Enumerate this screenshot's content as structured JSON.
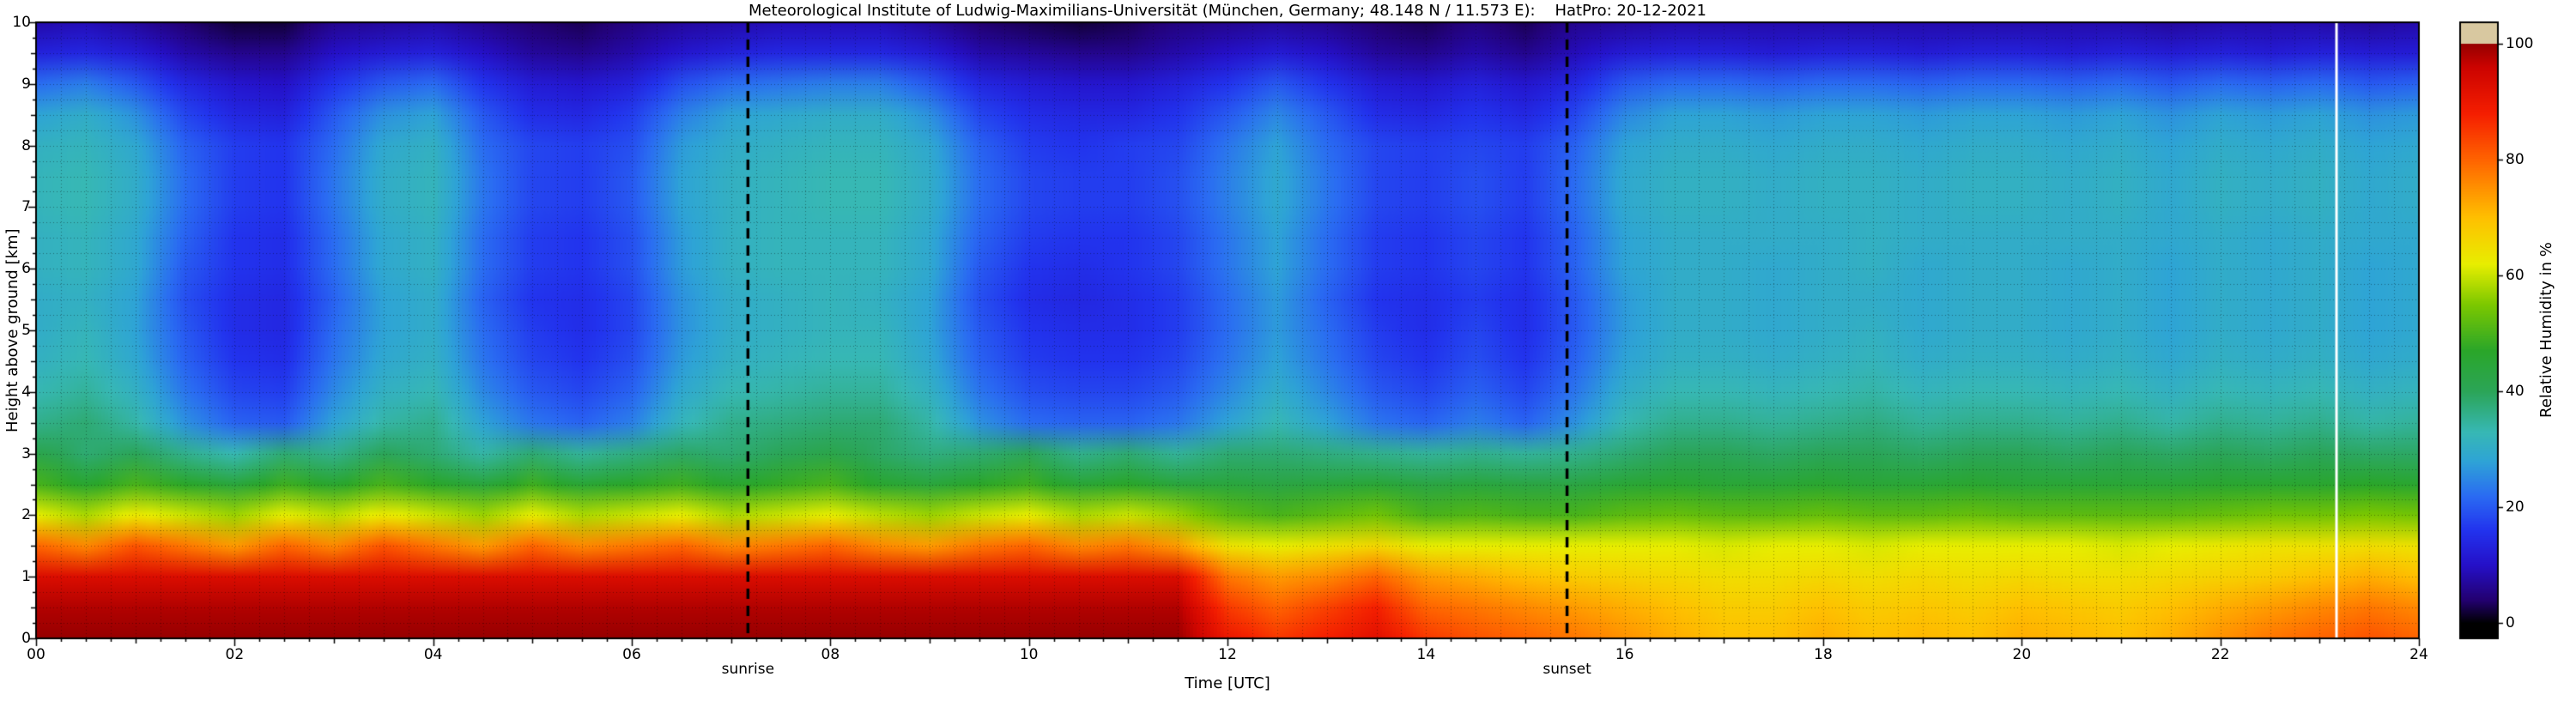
{
  "title": {
    "text": "Meteorological Institute of Ludwig-Maximilians-Universität (München, Germany; 48.148 N / 11.573 E):    HatPro: 20-12-2021"
  },
  "axes": {
    "xlabel": "Time [UTC]",
    "ylabel": "Height above ground [km]",
    "x_tick_values": [
      0,
      2,
      4,
      6,
      8,
      10,
      12,
      14,
      16,
      18,
      20,
      22,
      24
    ],
    "x_tick_labels": [
      "00",
      "02",
      "04",
      "06",
      "08",
      "10",
      "12",
      "14",
      "16",
      "18",
      "20",
      "22",
      "24"
    ],
    "y_tick_values": [
      0,
      1,
      2,
      3,
      4,
      5,
      6,
      7,
      8,
      9,
      10
    ],
    "y_tick_labels": [
      "0",
      "1",
      "2",
      "3",
      "4",
      "5",
      "6",
      "7",
      "8",
      "9",
      "10"
    ]
  },
  "colorbar": {
    "label": "Relative Humidity in %",
    "tick_values": [
      0,
      20,
      40,
      60,
      80,
      100
    ],
    "tick_labels": [
      "0",
      "20",
      "40",
      "60",
      "80",
      "100"
    ],
    "over_color": "#d8c8a0",
    "under_color": "#000000"
  },
  "annotations": {
    "sunrise_label": "sunrise",
    "sunset_label": "sunset",
    "sunrise_time_utc": 7.17,
    "sunset_time_utc": 15.42,
    "white_line_time_utc": 23.17,
    "dashed_line_color": "#000000",
    "white_line_color": "#ffffff"
  },
  "chart_data": {
    "type": "heatmap",
    "title": "Meteorological Institute of Ludwig-Maximilians-Universität (München, Germany; 48.148 N / 11.573 E):    HatPro: 20-12-2021",
    "xlabel": "Time [UTC]",
    "ylabel": "Height above ground [km]",
    "zlabel": "Relative Humidity in %",
    "x_range": [
      0,
      24
    ],
    "y_range": [
      0,
      10
    ],
    "z_range": [
      0,
      100
    ],
    "grid": true,
    "x": [
      0,
      0.5,
      1,
      1.5,
      2,
      2.5,
      3,
      3.5,
      4,
      4.5,
      5,
      5.5,
      6,
      6.5,
      7,
      7.5,
      8,
      8.5,
      9,
      9.5,
      10,
      10.5,
      11,
      11.5,
      12,
      12.5,
      13,
      13.5,
      14,
      14.5,
      15,
      15.5,
      16,
      16.5,
      17,
      17.5,
      18,
      18.5,
      19,
      19.5,
      20,
      20.5,
      21,
      21.5,
      22,
      22.5,
      23,
      23.5,
      24
    ],
    "y": [
      0,
      0.5,
      1,
      1.5,
      2,
      2.5,
      3,
      3.5,
      4,
      4.5,
      5,
      5.5,
      6,
      6.5,
      7,
      7.5,
      8,
      8.5,
      9,
      9.5,
      10
    ],
    "values": [
      [
        100,
        100,
        100,
        100,
        100,
        100,
        100,
        100,
        100,
        100,
        100,
        100,
        100,
        100,
        100,
        100,
        100,
        100,
        100,
        100,
        100,
        100,
        100,
        100,
        90,
        85,
        88,
        92,
        85,
        82,
        80,
        78,
        75,
        72,
        70,
        70,
        72,
        70,
        71,
        70,
        72,
        71,
        70,
        72,
        75,
        78,
        80,
        82,
        80
      ],
      [
        98,
        98,
        98,
        98,
        98,
        98,
        98,
        98,
        98,
        98,
        98,
        98,
        98,
        98,
        98,
        98,
        98,
        98,
        98,
        98,
        98,
        98,
        98,
        98,
        85,
        80,
        84,
        88,
        80,
        78,
        76,
        74,
        72,
        70,
        68,
        68,
        70,
        68,
        69,
        68,
        70,
        69,
        68,
        70,
        72,
        74,
        76,
        78,
        76
      ],
      [
        93,
        93,
        93,
        93,
        93,
        93,
        93,
        93,
        93,
        93,
        93,
        93,
        93,
        93,
        93,
        93,
        93,
        93,
        93,
        93,
        93,
        93,
        93,
        93,
        78,
        74,
        76,
        80,
        74,
        72,
        70,
        68,
        67,
        66,
        65,
        65,
        66,
        65,
        66,
        65,
        66,
        65,
        65,
        66,
        67,
        68,
        70,
        72,
        70
      ],
      [
        80,
        76,
        82,
        78,
        74,
        80,
        76,
        82,
        78,
        74,
        80,
        76,
        78,
        80,
        76,
        78,
        80,
        76,
        74,
        78,
        80,
        76,
        78,
        74,
        64,
        62,
        64,
        66,
        62,
        62,
        62,
        62,
        62,
        62,
        61,
        62,
        62,
        61,
        62,
        62,
        62,
        62,
        61,
        62,
        63,
        64,
        64,
        65,
        64
      ],
      [
        62,
        58,
        63,
        60,
        57,
        62,
        59,
        63,
        60,
        57,
        62,
        58,
        60,
        62,
        58,
        60,
        62,
        59,
        57,
        60,
        62,
        58,
        60,
        57,
        52,
        50,
        52,
        54,
        50,
        51,
        50,
        50,
        52,
        53,
        52,
        52,
        53,
        52,
        52,
        53,
        52,
        52,
        52,
        52,
        53,
        54,
        54,
        55,
        54
      ],
      [
        50,
        46,
        50,
        47,
        44,
        49,
        46,
        50,
        47,
        44,
        49,
        45,
        47,
        49,
        46,
        48,
        50,
        46,
        44,
        47,
        49,
        45,
        47,
        44,
        44,
        43,
        44,
        45,
        43,
        44,
        43,
        43,
        45,
        46,
        45,
        45,
        46,
        45,
        45,
        46,
        45,
        45,
        45,
        45,
        46,
        46,
        46,
        47,
        46
      ],
      [
        42,
        38,
        40,
        36,
        33,
        38,
        36,
        40,
        38,
        34,
        38,
        35,
        37,
        39,
        38,
        40,
        42,
        39,
        37,
        38,
        40,
        36,
        38,
        35,
        38,
        38,
        37,
        36,
        35,
        36,
        35,
        36,
        38,
        40,
        40,
        39,
        40,
        40,
        39,
        40,
        40,
        39,
        40,
        39,
        40,
        39,
        40,
        39,
        39
      ],
      [
        36,
        38,
        34,
        26,
        21,
        20,
        28,
        34,
        36,
        28,
        23,
        21,
        24,
        32,
        36,
        37,
        38,
        38,
        34,
        26,
        22,
        21,
        21,
        23,
        28,
        33,
        28,
        23,
        21,
        24,
        21,
        26,
        33,
        36,
        36,
        35,
        36,
        37,
        35,
        36,
        36,
        35,
        36,
        34,
        36,
        35,
        36,
        34,
        35
      ],
      [
        33,
        35,
        31,
        23,
        18,
        17,
        25,
        31,
        33,
        25,
        20,
        18,
        21,
        29,
        33,
        34,
        35,
        35,
        31,
        23,
        19,
        18,
        18,
        20,
        25,
        30,
        25,
        20,
        18,
        21,
        18,
        23,
        30,
        33,
        33,
        32,
        33,
        34,
        32,
        33,
        33,
        32,
        33,
        31,
        33,
        32,
        33,
        31,
        32
      ],
      [
        31,
        33,
        29,
        21,
        16,
        15,
        23,
        29,
        31,
        23,
        18,
        16,
        19,
        27,
        31,
        32,
        33,
        33,
        29,
        21,
        17,
        16,
        16,
        18,
        23,
        28,
        23,
        18,
        16,
        19,
        16,
        21,
        28,
        31,
        31,
        30,
        31,
        32,
        30,
        31,
        31,
        30,
        31,
        29,
        31,
        30,
        31,
        29,
        30
      ],
      [
        30,
        32,
        28,
        20,
        15,
        14,
        22,
        28,
        30,
        22,
        17,
        15,
        18,
        26,
        30,
        31,
        32,
        32,
        28,
        20,
        16,
        15,
        15,
        17,
        22,
        27,
        22,
        17,
        15,
        18,
        15,
        20,
        27,
        30,
        30,
        29,
        30,
        31,
        29,
        30,
        30,
        29,
        30,
        28,
        30,
        29,
        30,
        28,
        29
      ],
      [
        30,
        31,
        28,
        19,
        15,
        14,
        21,
        28,
        30,
        21,
        16,
        15,
        18,
        26,
        30,
        31,
        32,
        31,
        28,
        19,
        15,
        14,
        15,
        17,
        22,
        27,
        21,
        16,
        15,
        17,
        15,
        20,
        27,
        30,
        30,
        29,
        30,
        30,
        29,
        30,
        30,
        29,
        30,
        28,
        30,
        29,
        30,
        28,
        29
      ],
      [
        31,
        32,
        29,
        20,
        16,
        15,
        22,
        29,
        31,
        22,
        17,
        16,
        19,
        27,
        31,
        32,
        32,
        32,
        29,
        20,
        16,
        15,
        16,
        18,
        23,
        28,
        22,
        17,
        16,
        18,
        16,
        21,
        28,
        30,
        30,
        29,
        30,
        31,
        29,
        30,
        30,
        29,
        30,
        28,
        30,
        29,
        30,
        28,
        29
      ],
      [
        31,
        32,
        29,
        21,
        16,
        15,
        22,
        29,
        31,
        22,
        17,
        16,
        19,
        27,
        31,
        32,
        32,
        32,
        29,
        21,
        17,
        16,
        16,
        18,
        23,
        28,
        22,
        17,
        16,
        18,
        16,
        21,
        28,
        30,
        30,
        30,
        30,
        31,
        30,
        30,
        30,
        30,
        30,
        29,
        30,
        29,
        30,
        29,
        29
      ],
      [
        32,
        33,
        30,
        22,
        17,
        16,
        23,
        30,
        32,
        23,
        18,
        17,
        20,
        28,
        31,
        32,
        33,
        33,
        30,
        22,
        18,
        17,
        17,
        19,
        24,
        29,
        23,
        18,
        17,
        19,
        17,
        22,
        29,
        31,
        31,
        30,
        31,
        31,
        30,
        31,
        31,
        30,
        31,
        29,
        31,
        30,
        31,
        29,
        30
      ],
      [
        32,
        33,
        30,
        22,
        17,
        16,
        23,
        30,
        32,
        23,
        18,
        17,
        20,
        28,
        31,
        32,
        33,
        33,
        30,
        22,
        18,
        17,
        17,
        19,
        24,
        29,
        23,
        18,
        17,
        19,
        17,
        22,
        29,
        31,
        31,
        30,
        31,
        31,
        30,
        31,
        31,
        30,
        31,
        29,
        31,
        30,
        31,
        29,
        30
      ],
      [
        31,
        32,
        29,
        21,
        17,
        16,
        22,
        29,
        31,
        22,
        18,
        17,
        19,
        27,
        30,
        31,
        32,
        32,
        29,
        21,
        17,
        16,
        17,
        18,
        23,
        28,
        22,
        18,
        17,
        18,
        17,
        21,
        28,
        30,
        30,
        29,
        30,
        30,
        29,
        30,
        30,
        29,
        30,
        28,
        30,
        29,
        30,
        28,
        29
      ],
      [
        28,
        30,
        26,
        18,
        14,
        13,
        20,
        26,
        28,
        20,
        15,
        14,
        17,
        24,
        28,
        29,
        30,
        30,
        26,
        18,
        15,
        14,
        14,
        16,
        20,
        25,
        20,
        15,
        14,
        16,
        14,
        18,
        25,
        28,
        28,
        27,
        28,
        28,
        27,
        28,
        28,
        27,
        28,
        26,
        28,
        27,
        28,
        26,
        27
      ],
      [
        22,
        24,
        20,
        14,
        11,
        10,
        16,
        20,
        22,
        16,
        12,
        11,
        13,
        19,
        22,
        23,
        24,
        24,
        20,
        14,
        12,
        11,
        11,
        13,
        16,
        20,
        16,
        12,
        11,
        13,
        11,
        14,
        20,
        22,
        22,
        21,
        22,
        22,
        21,
        22,
        22,
        21,
        22,
        20,
        22,
        21,
        22,
        20,
        21
      ],
      [
        13,
        14,
        12,
        8,
        6,
        6,
        10,
        12,
        13,
        10,
        7,
        6,
        8,
        11,
        13,
        14,
        14,
        14,
        12,
        8,
        7,
        6,
        6,
        8,
        10,
        12,
        10,
        7,
        6,
        8,
        6,
        9,
        12,
        13,
        13,
        12,
        13,
        13,
        12,
        13,
        13,
        12,
        13,
        12,
        13,
        12,
        13,
        12,
        12
      ],
      [
        8,
        9,
        7,
        4,
        2,
        2,
        6,
        7,
        8,
        6,
        4,
        3,
        5,
        7,
        8,
        9,
        9,
        9,
        7,
        4,
        3,
        2,
        3,
        5,
        6,
        7,
        6,
        4,
        3,
        5,
        3,
        6,
        7,
        8,
        8,
        8,
        8,
        8,
        8,
        8,
        8,
        8,
        8,
        7,
        8,
        8,
        8,
        7,
        8
      ]
    ],
    "colormap_stops": [
      [
        0,
        "#000000"
      ],
      [
        4,
        "#230070"
      ],
      [
        10,
        "#2510c8"
      ],
      [
        16,
        "#2233ee"
      ],
      [
        22,
        "#2a6cf2"
      ],
      [
        28,
        "#2ea4d6"
      ],
      [
        33,
        "#37b8b4"
      ],
      [
        40,
        "#2ba558"
      ],
      [
        47,
        "#2aa62a"
      ],
      [
        55,
        "#7cc800"
      ],
      [
        62,
        "#e8ee00"
      ],
      [
        70,
        "#ffc000"
      ],
      [
        80,
        "#ff6400"
      ],
      [
        88,
        "#f51e00"
      ],
      [
        96,
        "#cc0300"
      ],
      [
        100,
        "#970000"
      ]
    ]
  }
}
